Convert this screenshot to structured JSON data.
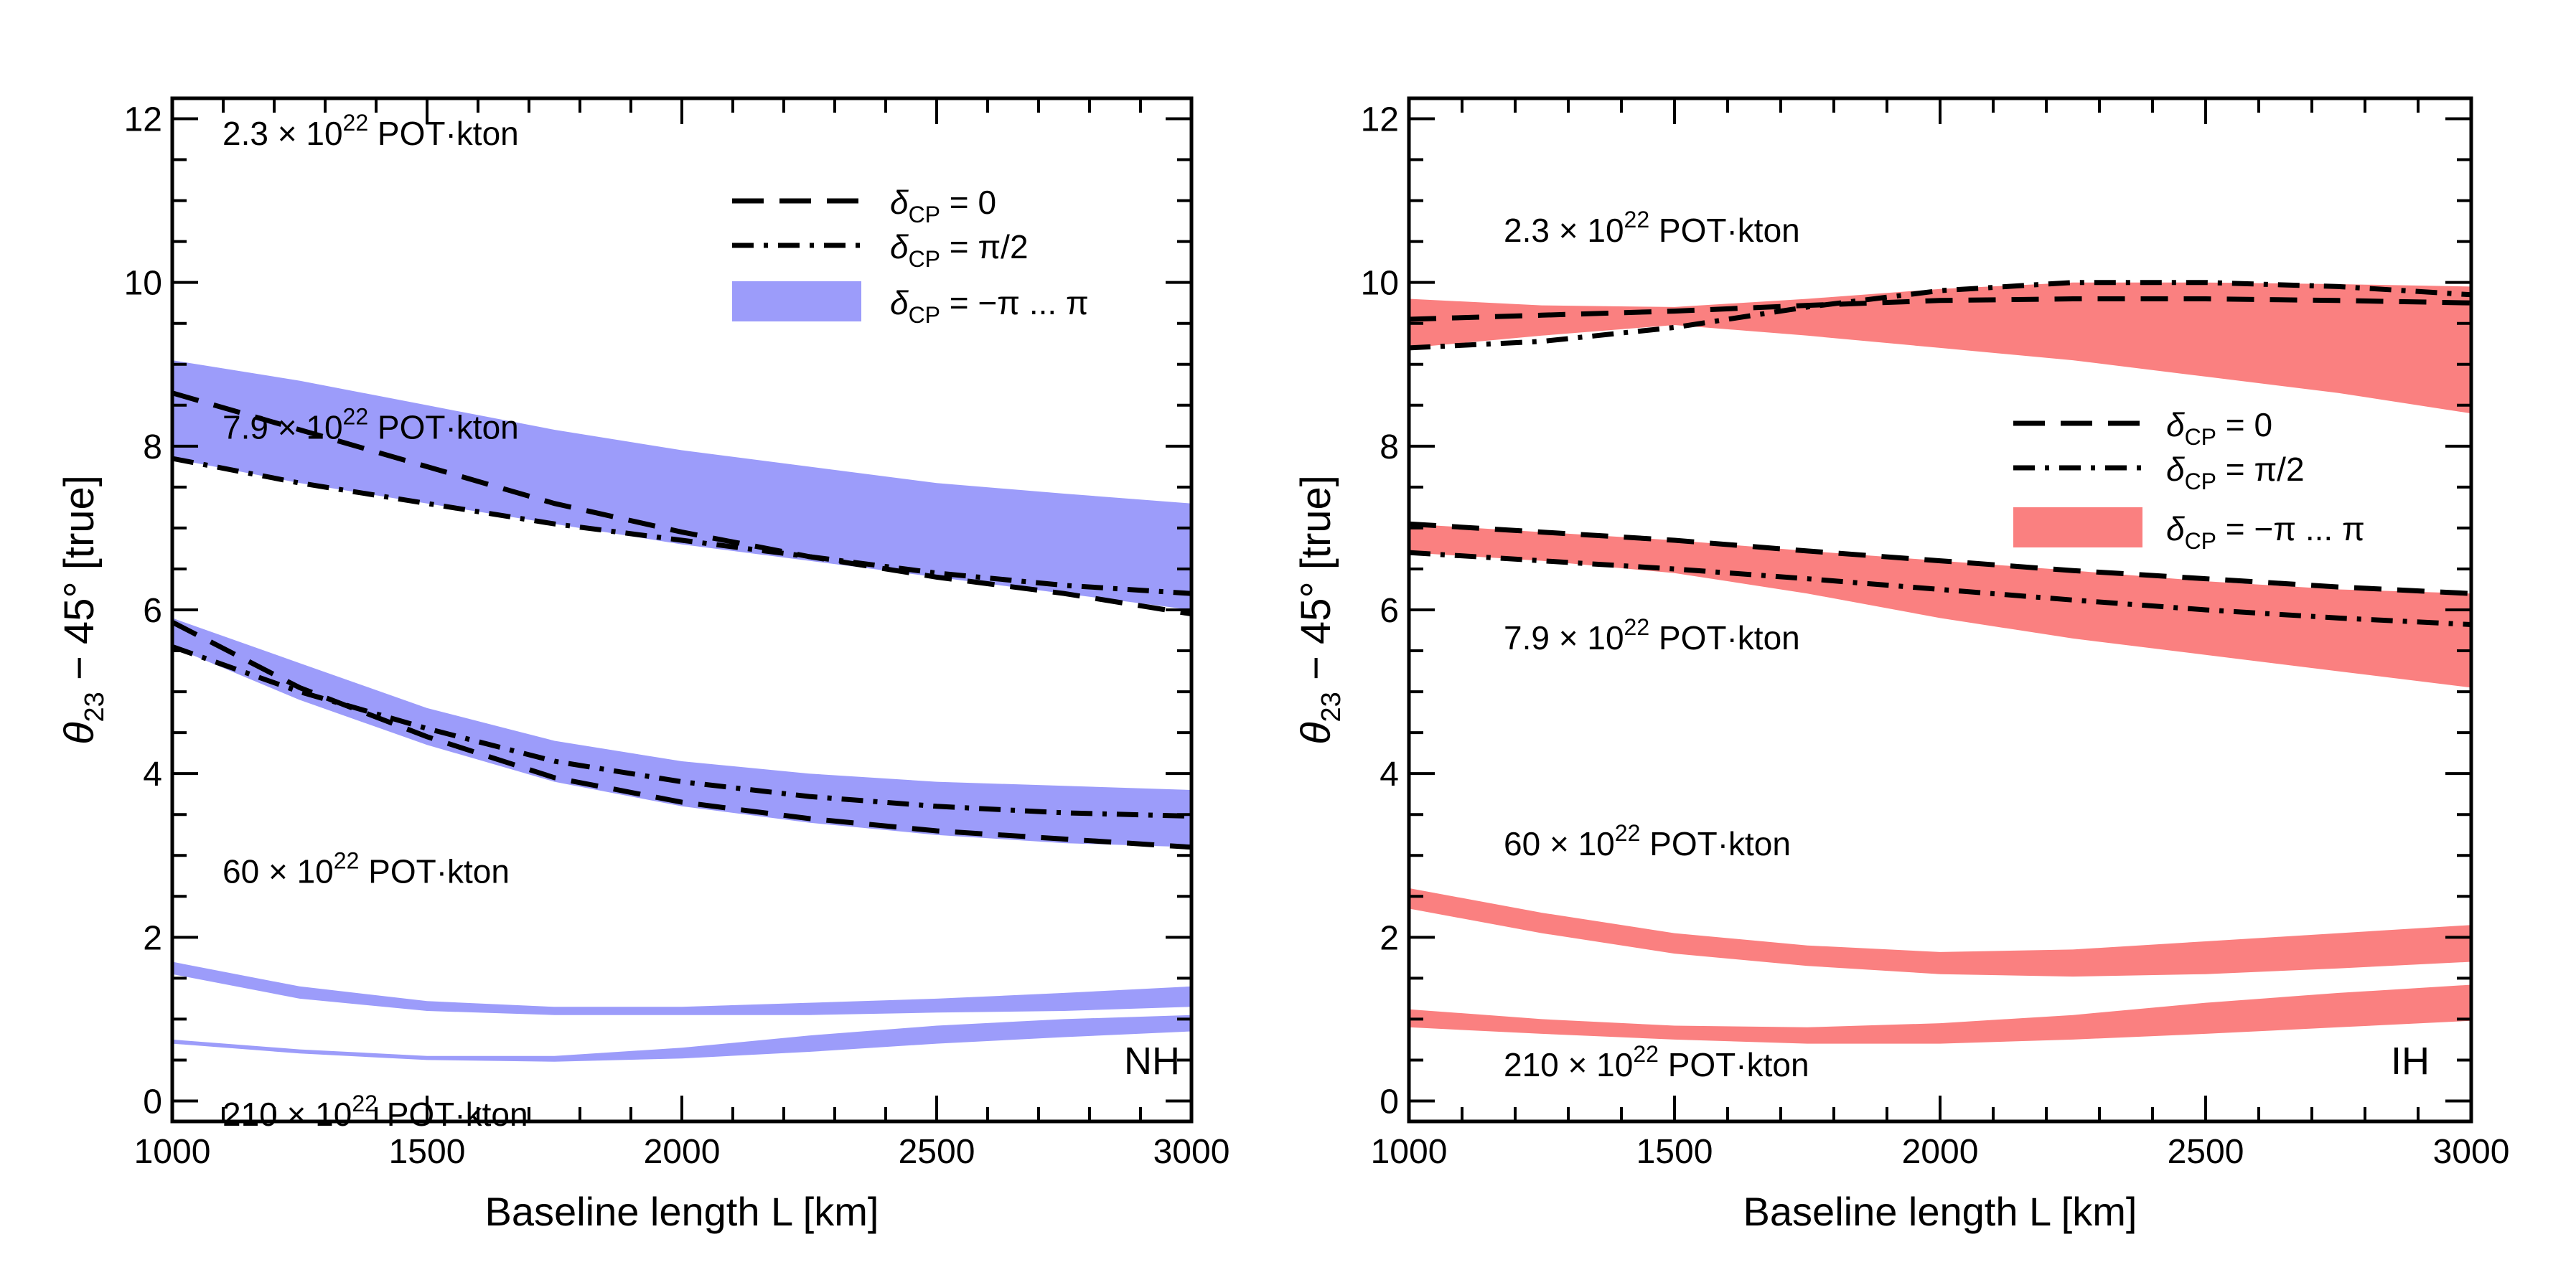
{
  "chart_data": [
    {
      "type": "area",
      "panel": "NH",
      "panel_label": "NH",
      "xlabel": "Baseline length   L [km]",
      "ylabel_parts": [
        "θ",
        "23",
        " − 45°  [true]"
      ],
      "xlim": [
        1000,
        3000
      ],
      "ylim": [
        -0.25,
        12.25
      ],
      "xticks": [
        1000,
        1500,
        2000,
        2500,
        3000
      ],
      "yticks": [
        0,
        2,
        4,
        6,
        8,
        10,
        12
      ],
      "legend": {
        "position": "top-right",
        "dashed": {
          "sym": "δ",
          "sub": "CP",
          "rest": " = 0"
        },
        "dashdot": {
          "sym": "δ",
          "sub": "CP",
          "rest": " = π/2"
        },
        "band": {
          "sym": "δ",
          "sub": "CP",
          "rest": " = −π ... π"
        }
      },
      "band_color": "#9c9cfa",
      "bands": [
        {
          "label": {
            "pre": "2.3 × 10",
            "sup": "22",
            "post": " POT·kton"
          },
          "x": [
            1000,
            1250,
            1500,
            1750,
            2000,
            2250,
            2500,
            2750,
            3000
          ],
          "upper": [
            9.05,
            8.8,
            8.5,
            8.2,
            7.95,
            7.75,
            7.55,
            7.42,
            7.3
          ],
          "lower": [
            7.85,
            7.55,
            7.3,
            7.05,
            6.8,
            6.6,
            6.4,
            6.2,
            6.0
          ],
          "dashed": [
            8.65,
            8.2,
            7.75,
            7.3,
            6.95,
            6.65,
            6.4,
            6.2,
            5.95
          ],
          "dashdot": [
            7.85,
            7.55,
            7.3,
            7.05,
            6.85,
            6.65,
            6.45,
            6.3,
            6.2
          ]
        },
        {
          "label": {
            "pre": "7.9 × 10",
            "sup": "22",
            "post": " POT·kton"
          },
          "x": [
            1000,
            1250,
            1500,
            1750,
            2000,
            2250,
            2500,
            2750,
            3000
          ],
          "upper": [
            5.9,
            5.35,
            4.8,
            4.4,
            4.15,
            4.0,
            3.9,
            3.85,
            3.8
          ],
          "lower": [
            5.55,
            4.9,
            4.35,
            3.9,
            3.6,
            3.4,
            3.25,
            3.15,
            3.1
          ],
          "dashed": [
            5.85,
            5.05,
            4.45,
            3.95,
            3.65,
            3.45,
            3.3,
            3.2,
            3.1
          ],
          "dashdot": [
            5.55,
            5.0,
            4.55,
            4.15,
            3.9,
            3.72,
            3.6,
            3.52,
            3.48
          ]
        },
        {
          "label": {
            "pre": "60 × 10",
            "sup": "22",
            "post": " POT·kton"
          },
          "x": [
            1000,
            1250,
            1500,
            1750,
            2000,
            2250,
            2500,
            2750,
            3000
          ],
          "upper": [
            1.7,
            1.4,
            1.22,
            1.15,
            1.15,
            1.2,
            1.25,
            1.32,
            1.4
          ],
          "lower": [
            1.55,
            1.25,
            1.1,
            1.05,
            1.05,
            1.05,
            1.08,
            1.1,
            1.15
          ]
        },
        {
          "label": {
            "pre": "210 × 10",
            "sup": "22",
            "post": " POT·kton"
          },
          "x": [
            1000,
            1250,
            1500,
            1750,
            2000,
            2250,
            2500,
            2750,
            3000
          ],
          "upper": [
            0.75,
            0.63,
            0.55,
            0.55,
            0.65,
            0.8,
            0.92,
            1.0,
            1.05
          ],
          "lower": [
            0.7,
            0.58,
            0.5,
            0.48,
            0.52,
            0.6,
            0.7,
            0.78,
            0.85
          ]
        }
      ]
    },
    {
      "type": "area",
      "panel": "IH",
      "panel_label": "IH",
      "xlabel": "Baseline length   L [km]",
      "ylabel_parts": [
        "θ",
        "23",
        " − 45°  [true]"
      ],
      "xlim": [
        1000,
        3000
      ],
      "ylim": [
        -0.25,
        12.25
      ],
      "xticks": [
        1000,
        1500,
        2000,
        2500,
        3000
      ],
      "yticks": [
        0,
        2,
        4,
        6,
        8,
        10,
        12
      ],
      "legend": {
        "position": "middle-right",
        "dashed": {
          "sym": "δ",
          "sub": "CP",
          "rest": " = 0"
        },
        "dashdot": {
          "sym": "δ",
          "sub": "CP",
          "rest": " = π/2"
        },
        "band": {
          "sym": "δ",
          "sub": "CP",
          "rest": " = −π ... π"
        }
      },
      "band_color": "#fa8080",
      "bands": [
        {
          "label": {
            "pre": "2.3 × 10",
            "sup": "22",
            "post": " POT·kton"
          },
          "x": [
            1000,
            1250,
            1500,
            1750,
            2000,
            2250,
            2500,
            2750,
            3000
          ],
          "upper": [
            9.8,
            9.72,
            9.7,
            9.8,
            9.92,
            10.0,
            10.0,
            9.98,
            9.95
          ],
          "lower": [
            9.2,
            9.35,
            9.48,
            9.35,
            9.2,
            9.05,
            8.85,
            8.65,
            8.4
          ],
          "dashed": [
            9.55,
            9.6,
            9.65,
            9.72,
            9.78,
            9.8,
            9.8,
            9.78,
            9.75
          ],
          "dashdot": [
            9.2,
            9.28,
            9.45,
            9.7,
            9.9,
            10.0,
            10.0,
            9.95,
            9.85
          ]
        },
        {
          "label": {
            "pre": "7.9 × 10",
            "sup": "22",
            "post": " POT·kton"
          },
          "x": [
            1000,
            1250,
            1500,
            1750,
            2000,
            2250,
            2500,
            2750,
            3000
          ],
          "upper": [
            7.05,
            6.95,
            6.85,
            6.72,
            6.6,
            6.48,
            6.35,
            6.25,
            6.2
          ],
          "lower": [
            6.7,
            6.6,
            6.45,
            6.2,
            5.9,
            5.65,
            5.45,
            5.25,
            5.05
          ],
          "dashed": [
            7.05,
            6.95,
            6.85,
            6.72,
            6.6,
            6.48,
            6.38,
            6.28,
            6.2
          ],
          "dashdot": [
            6.7,
            6.6,
            6.5,
            6.38,
            6.25,
            6.12,
            6.0,
            5.9,
            5.82
          ]
        },
        {
          "label": {
            "pre": "60 × 10",
            "sup": "22",
            "post": " POT·kton"
          },
          "x": [
            1000,
            1250,
            1500,
            1750,
            2000,
            2250,
            2500,
            2750,
            3000
          ],
          "upper": [
            2.6,
            2.3,
            2.05,
            1.9,
            1.82,
            1.85,
            1.95,
            2.05,
            2.15
          ],
          "lower": [
            2.35,
            2.05,
            1.8,
            1.65,
            1.55,
            1.52,
            1.55,
            1.62,
            1.7
          ]
        },
        {
          "label": {
            "pre": "210 × 10",
            "sup": "22",
            "post": " POT·kton"
          },
          "x": [
            1000,
            1250,
            1500,
            1750,
            2000,
            2250,
            2500,
            2750,
            3000
          ],
          "upper": [
            1.12,
            1.0,
            0.92,
            0.9,
            0.95,
            1.05,
            1.2,
            1.32,
            1.42
          ],
          "lower": [
            0.9,
            0.82,
            0.75,
            0.7,
            0.7,
            0.75,
            0.82,
            0.9,
            0.98
          ]
        }
      ]
    }
  ]
}
